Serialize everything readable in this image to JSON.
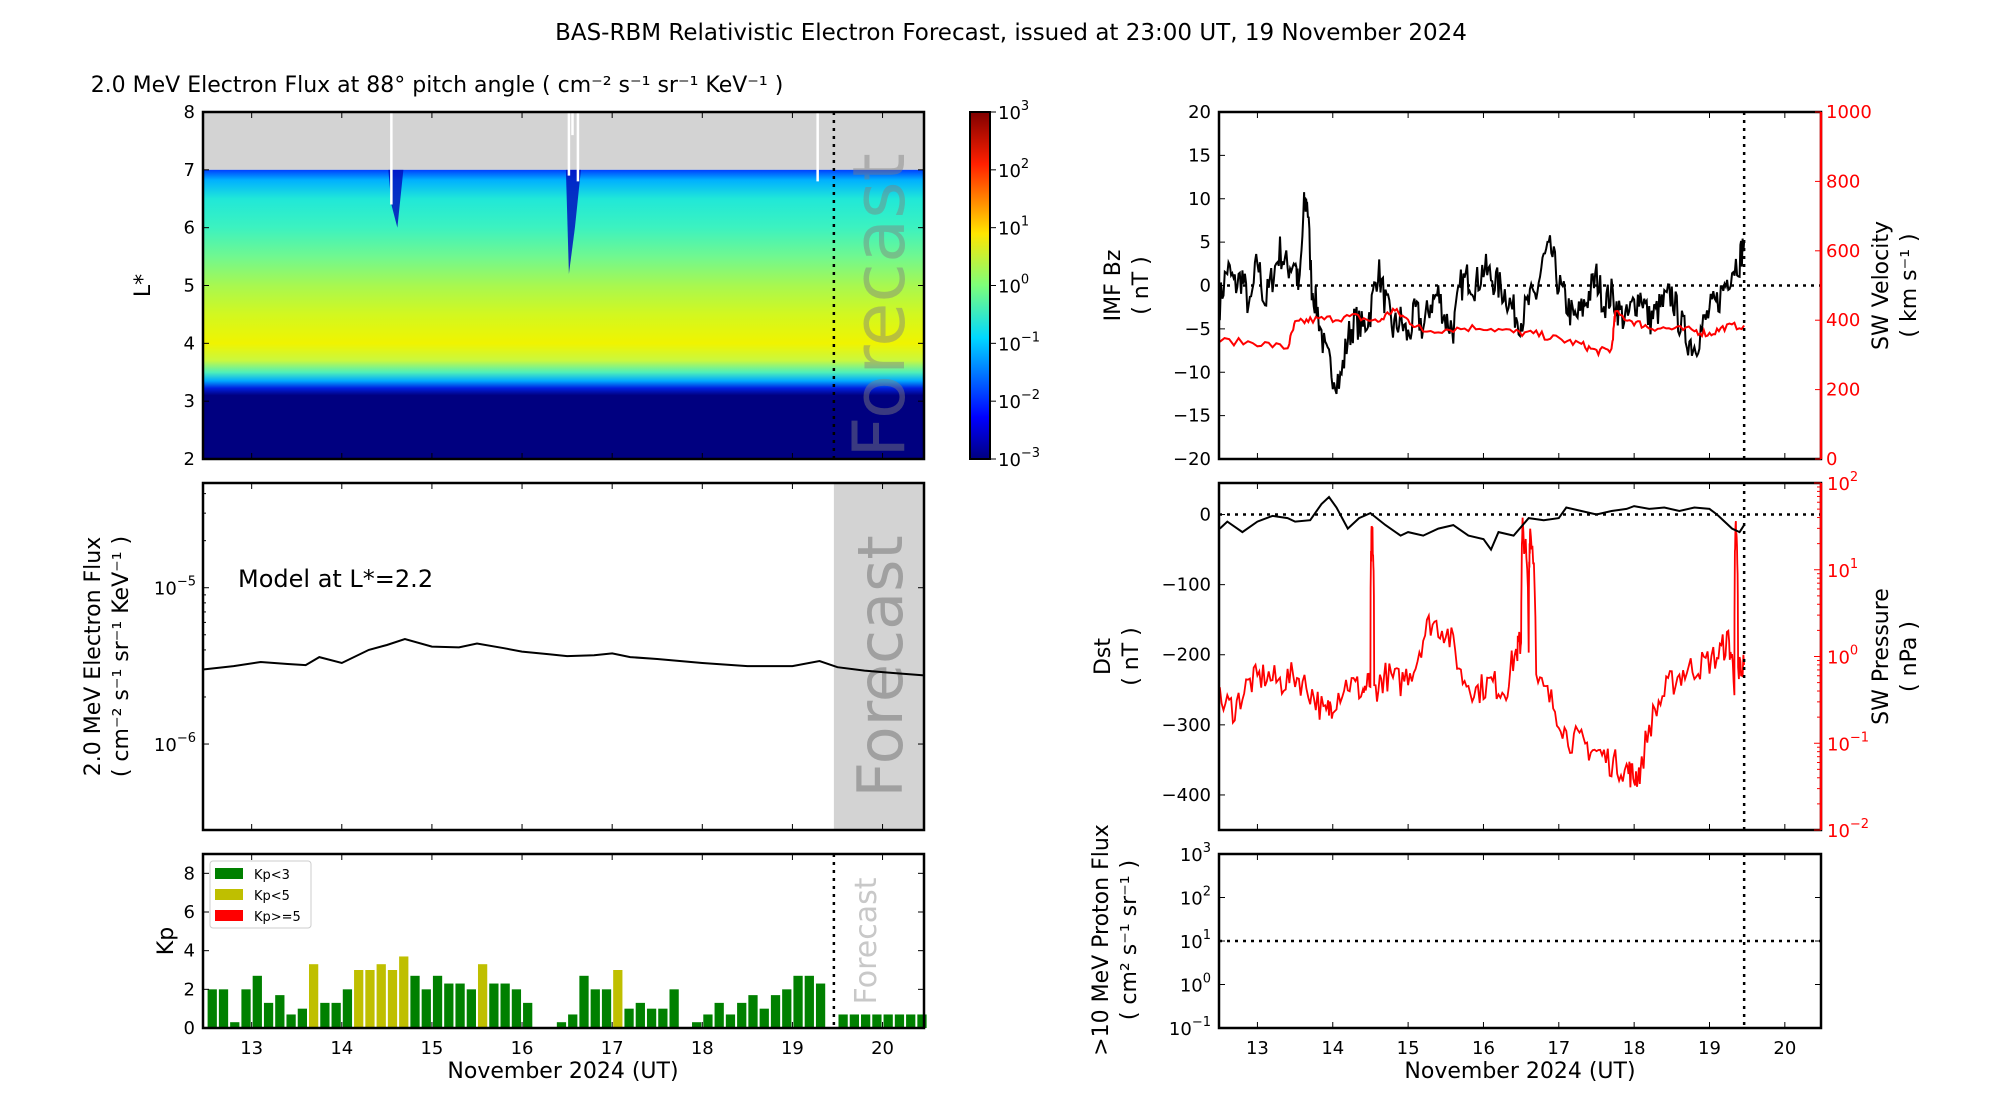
{
  "title": "BAS-RBM Relativistic Electron Forecast, issued at 23:00 UT, 19 November 2024",
  "forecast_label": "Forecast",
  "xlabel": "November 2024 (UT)",
  "colors": {
    "kp_low": "#008000",
    "kp_mid": "#bfbf00",
    "kp_high": "#ff0000",
    "sw": "#ff0000",
    "forecast_shade": "#d3d3d3"
  },
  "chart_data": [
    {
      "id": "flux_heatmap",
      "type": "heatmap",
      "title": "2.0 MeV Electron Flux at 88° pitch angle ( cm⁻² s⁻¹ sr⁻¹ KeV⁻¹ )",
      "ylabel": "L*",
      "xlim": [
        12.46,
        20.46
      ],
      "ylim": [
        2,
        8
      ],
      "yticks": [
        "2",
        "3",
        "4",
        "5",
        "6",
        "7",
        "8"
      ],
      "xticks": [
        13,
        14,
        15,
        16,
        17,
        18,
        19,
        20
      ],
      "colorbar": {
        "scale": "log",
        "range": [
          0.001,
          1000
        ],
        "colormap": "jet",
        "tick_exponents": [
          3,
          2,
          1,
          0,
          -1,
          -2,
          -3
        ]
      },
      "no_data_above_L": 7,
      "forecast_start": 19.46
    },
    {
      "id": "flux_line",
      "type": "line",
      "ylabel": "2.0 MeV Electron Flux",
      "ylabel2": "( cm⁻² s⁻¹ sr⁻¹ KeV⁻¹ )",
      "annotation": "Model at L*=2.2",
      "yscale": "log",
      "ylim_exp": [
        -6.55,
        -4.33
      ],
      "ytick_exponents": [
        -5,
        -6
      ],
      "x": [
        12.46,
        12.8,
        13.1,
        13.4,
        13.6,
        13.75,
        14.0,
        14.3,
        14.5,
        14.7,
        15.0,
        15.3,
        15.5,
        15.8,
        16.0,
        16.3,
        16.5,
        16.8,
        17.0,
        17.2,
        17.5,
        18.0,
        18.5,
        19.0,
        19.3,
        19.5,
        19.8,
        20.1,
        20.46
      ],
      "y": [
        3e-06,
        3.15e-06,
        3.35e-06,
        3.25e-06,
        3.2e-06,
        3.6e-06,
        3.3e-06,
        4e-06,
        4.3e-06,
        4.7e-06,
        4.2e-06,
        4.15e-06,
        4.4e-06,
        4.1e-06,
        3.9e-06,
        3.75e-06,
        3.65e-06,
        3.7e-06,
        3.8e-06,
        3.6e-06,
        3.5e-06,
        3.3e-06,
        3.15e-06,
        3.15e-06,
        3.4e-06,
        3.1e-06,
        2.95e-06,
        2.85e-06,
        2.75e-06
      ],
      "forecast_start": 19.46
    },
    {
      "id": "kp",
      "type": "bar",
      "ylabel": "Kp",
      "ylim": [
        0,
        9
      ],
      "yticks": [
        "0",
        "2",
        "4",
        "6",
        "8"
      ],
      "legend": [
        "Kp<3",
        "Kp<5",
        "Kp>=5"
      ],
      "legend_position": "top-left",
      "bar_start": 12.5,
      "bar_step_days": 0.125,
      "values": [
        2,
        2,
        0.3,
        2,
        2.7,
        1.3,
        1.7,
        0.7,
        1,
        3.3,
        1.3,
        1.3,
        2,
        3,
        3,
        3.3,
        3,
        3.7,
        2.7,
        2,
        2.7,
        2.3,
        2.3,
        2,
        3.3,
        2.3,
        2.3,
        2,
        1.3,
        0,
        0,
        0.3,
        0.7,
        2.7,
        2,
        2,
        3,
        1,
        1.3,
        1,
        1,
        2,
        0,
        0.3,
        0.7,
        1.3,
        0.7,
        1.3,
        1.7,
        1,
        1.7,
        2,
        2.7,
        2.7,
        2.3,
        0,
        0.7,
        0.7,
        0.7,
        0.7,
        0.7,
        0.7,
        0.7,
        0.7
      ],
      "forecast_start": 19.46
    },
    {
      "id": "imf_sw",
      "type": "line",
      "ylabel": "IMF Bz",
      "ylabel_unit": "( nT )",
      "ylim": [
        -20,
        20
      ],
      "yticks": [
        "20",
        "15",
        "10",
        "5",
        "0",
        "−5",
        "−10",
        "−15",
        "−20"
      ],
      "ylabel_right": "SW Velocity",
      "ylabel_right_unit": "( km s⁻¹ )",
      "ylim_right": [
        0,
        1000
      ],
      "yticks_right": [
        "1000",
        "800",
        "600",
        "400",
        "200",
        "0"
      ],
      "bz_x": [
        12.5,
        12.6,
        12.7,
        12.8,
        12.9,
        13.0,
        13.1,
        13.2,
        13.3,
        13.4,
        13.5,
        13.55,
        13.62,
        13.66,
        13.72,
        13.8,
        13.9,
        14.0,
        14.1,
        14.2,
        14.3,
        14.4,
        14.5,
        14.6,
        14.7,
        14.8,
        14.9,
        15.0,
        15.1,
        15.2,
        15.3,
        15.4,
        15.5,
        15.6,
        15.7,
        15.8,
        15.9,
        16.0,
        16.1,
        16.2,
        16.3,
        16.4,
        16.5,
        16.6,
        16.7,
        16.8,
        16.9,
        17.0,
        17.1,
        17.2,
        17.3,
        17.4,
        17.5,
        17.6,
        17.7,
        17.8,
        17.9,
        18.0,
        18.1,
        18.2,
        18.3,
        18.4,
        18.5,
        18.6,
        18.7,
        18.8,
        18.9,
        19.0,
        19.1,
        19.2,
        19.3,
        19.4,
        19.46
      ],
      "bz_y": [
        -2,
        2,
        0,
        1,
        -3,
        3,
        -2,
        1,
        4,
        2,
        3,
        -1,
        9,
        10,
        0,
        -3,
        -8,
        -10,
        -11,
        -6,
        -4,
        -5,
        -3,
        2,
        -2,
        -5,
        -4,
        -6,
        -3,
        -5,
        -2,
        -1,
        -4,
        -5,
        0,
        1,
        0,
        2,
        1,
        0,
        -1,
        -3,
        -4,
        -2,
        -1,
        3,
        4,
        0,
        -2,
        -4,
        -3,
        -1,
        1,
        -2,
        -1,
        -3,
        -4,
        -2,
        -1,
        -4,
        -3,
        -2,
        -1,
        -4,
        -6,
        -7,
        -5,
        -3,
        -2,
        0,
        2,
        3,
        5
      ],
      "v_x": [
        12.5,
        13.0,
        13.4,
        13.5,
        13.7,
        14.0,
        14.3,
        14.6,
        14.8,
        15.0,
        15.2,
        15.6,
        16.0,
        16.4,
        16.7,
        17.0,
        17.3,
        17.5,
        17.7,
        17.75,
        18.0,
        18.2,
        18.5,
        18.8,
        19.0,
        19.2,
        19.46
      ],
      "v_y": [
        340,
        335,
        320,
        390,
        400,
        405,
        410,
        395,
        430,
        400,
        370,
        375,
        380,
        365,
        360,
        345,
        330,
        310,
        315,
        420,
        395,
        380,
        375,
        370,
        360,
        380,
        385
      ],
      "zero_line": 0,
      "forecast_start": 19.46
    },
    {
      "id": "dst_pressure",
      "type": "line",
      "ylabel": "Dst",
      "ylabel_unit": "( nT )",
      "ylim": [
        -450,
        45
      ],
      "yticks": [
        "0",
        "−100",
        "−200",
        "−300",
        "−400"
      ],
      "ylabel_right": "SW Pressure",
      "ylabel_right_unit": "( nPa )",
      "yscale_right": "log",
      "ylim_right_exp": [
        -2,
        2
      ],
      "ytick_right_exponents": [
        2,
        1,
        0,
        -1,
        -2
      ],
      "dst_x": [
        12.5,
        12.6,
        12.8,
        13.0,
        13.2,
        13.4,
        13.5,
        13.7,
        13.85,
        13.95,
        14.05,
        14.2,
        14.35,
        14.5,
        14.7,
        14.9,
        15.0,
        15.2,
        15.4,
        15.6,
        15.8,
        16.0,
        16.1,
        16.2,
        16.4,
        16.6,
        16.8,
        17.0,
        17.1,
        17.3,
        17.5,
        17.7,
        17.9,
        18.0,
        18.2,
        18.4,
        18.6,
        18.8,
        19.0,
        19.1,
        19.2,
        19.3,
        19.4,
        19.46
      ],
      "dst_y": [
        -20,
        -10,
        -25,
        -10,
        -2,
        -5,
        -10,
        -8,
        15,
        25,
        10,
        -20,
        -5,
        2,
        -15,
        -30,
        -25,
        -30,
        -20,
        -15,
        -30,
        -35,
        -50,
        -25,
        -30,
        -5,
        -8,
        -5,
        10,
        5,
        0,
        5,
        8,
        12,
        8,
        10,
        5,
        10,
        8,
        0,
        -10,
        -20,
        -25,
        -15
      ],
      "p_x": [
        12.5,
        12.7,
        12.9,
        13.1,
        13.3,
        13.5,
        13.7,
        13.9,
        14.0,
        14.2,
        14.4,
        14.5,
        14.52,
        14.55,
        14.7,
        14.9,
        15.1,
        15.3,
        15.5,
        15.7,
        15.9,
        16.1,
        16.3,
        16.45,
        16.5,
        16.52,
        16.6,
        16.62,
        16.7,
        16.9,
        17.1,
        17.3,
        17.5,
        17.7,
        17.9,
        18.0,
        18.1,
        18.3,
        18.5,
        18.7,
        18.9,
        19.1,
        19.25,
        19.33,
        19.35,
        19.38,
        19.46
      ],
      "p_y": [
        0.3,
        0.25,
        0.5,
        0.6,
        0.5,
        0.6,
        0.4,
        0.2,
        0.3,
        0.5,
        0.4,
        0.5,
        30,
        0.4,
        0.6,
        0.5,
        0.8,
        2.5,
        2.0,
        0.6,
        0.4,
        0.5,
        0.4,
        1.2,
        1.5,
        30,
        1.2,
        30,
        0.5,
        0.3,
        0.12,
        0.1,
        0.08,
        0.06,
        0.05,
        0.04,
        0.05,
        0.25,
        0.5,
        0.7,
        0.8,
        1.0,
        1.5,
        0.5,
        30,
        0.7,
        0.8
      ],
      "zero_line": 0,
      "forecast_start": 19.46
    },
    {
      "id": "proton",
      "type": "line",
      "ylabel": ">10 MeV Proton Flux",
      "ylabel_unit": "( cm² s⁻¹ sr⁻¹ )",
      "yscale": "log",
      "ylim_exp": [
        -1,
        3
      ],
      "ytick_exponents": [
        3,
        2,
        1,
        0,
        -1
      ],
      "threshold": 10,
      "values": [],
      "forecast_start": 19.46
    }
  ]
}
